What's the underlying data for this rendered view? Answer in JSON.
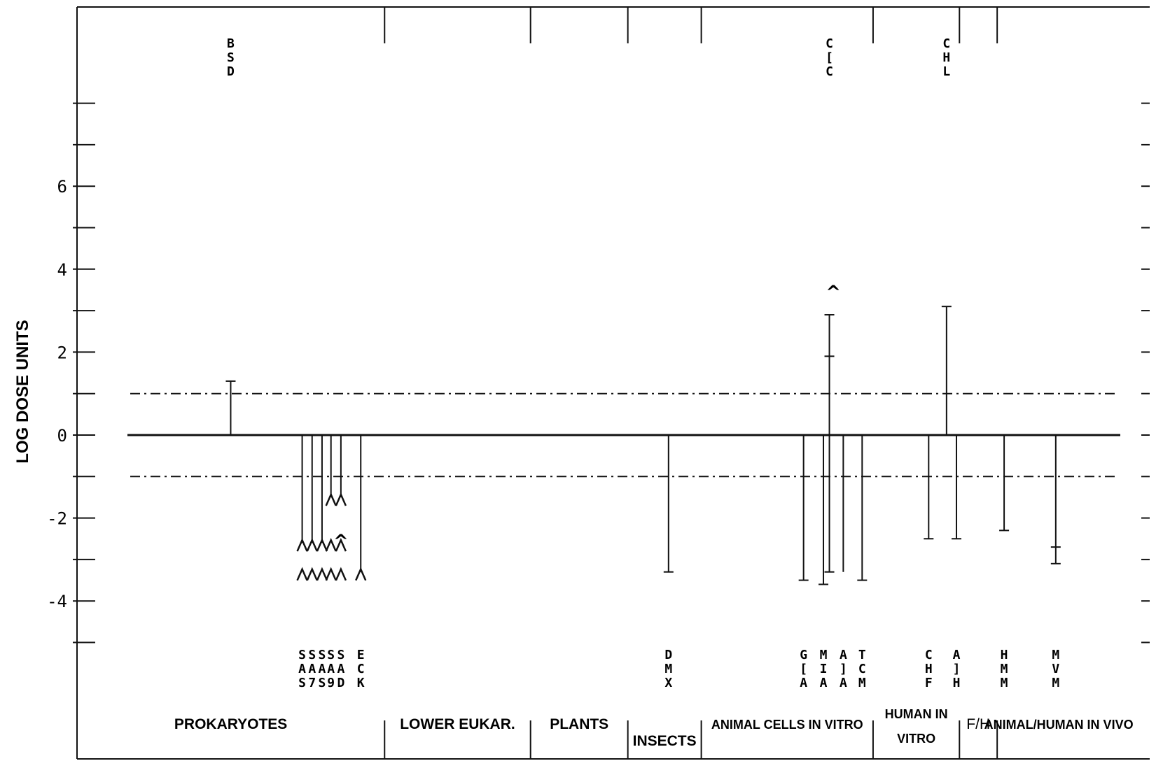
{
  "chart_data": {
    "type": "other",
    "ylabel": "LOG DOSE UNITS",
    "y_tick_labels": [
      "6",
      "4",
      "2",
      "0",
      "-2",
      "-4"
    ],
    "y_tick_values": [
      6,
      4,
      2,
      0,
      -2,
      -4
    ],
    "ylim": [
      -5.1,
      9.5
    ],
    "reference_lines": [
      1,
      -1
    ],
    "categories": [
      {
        "label": "PROKARYOTES",
        "xa": 0,
        "xb": 0.259
      },
      {
        "label": "LOWER EUKAR.",
        "xa": 0.259,
        "xb": 0.406
      },
      {
        "label": "PLANTS",
        "xa": 0.406,
        "xb": 0.504
      },
      {
        "label": "INSECTS",
        "xa": 0.504,
        "xb": 0.578
      },
      {
        "label": "ANIMAL CELLS IN VITRO",
        "xa": 0.578,
        "xb": 0.751
      },
      {
        "label": "HUMAN IN VITRO",
        "xa": 0.751,
        "xb": 0.838
      },
      {
        "label": "F/H",
        "xa": 0.838,
        "xb": 0.876
      },
      {
        "label": "ANIMAL/HUMAN IN VIVO",
        "xa": 0.876,
        "xb": 1
      }
    ],
    "top_codes": [
      {
        "code": "BSD",
        "x": 0.104
      },
      {
        "code": "C[C",
        "x": 0.707
      },
      {
        "code": "CHL",
        "x": 0.825
      }
    ],
    "bottom_codes": [
      {
        "code": "SAS",
        "x": 0.176
      },
      {
        "code": "SA7",
        "x": 0.186
      },
      {
        "code": "SAS",
        "x": 0.196
      },
      {
        "code": "SA9",
        "x": 0.205
      },
      {
        "code": "SAD",
        "x": 0.215
      },
      {
        "code": "ECK",
        "x": 0.235
      },
      {
        "code": "DMX",
        "x": 0.545
      },
      {
        "code": "G[A",
        "x": 0.681
      },
      {
        "code": "MIA",
        "x": 0.701
      },
      {
        "code": "A]A",
        "x": 0.721
      },
      {
        "code": "TCM",
        "x": 0.74
      },
      {
        "code": "CHF",
        "x": 0.807
      },
      {
        "code": "A]H",
        "x": 0.835
      },
      {
        "code": "HMM",
        "x": 0.883
      },
      {
        "code": "MVM",
        "x": 0.935
      }
    ],
    "bars": [
      {
        "x": 0.104,
        "from": 0,
        "to": 1.3,
        "cap": true
      },
      {
        "x": 0.176,
        "from": 0,
        "to": -2.6,
        "arrow": "up"
      },
      {
        "x": 0.186,
        "from": 0,
        "to": -2.6,
        "arrow": "up"
      },
      {
        "x": 0.196,
        "from": 0,
        "to": -2.6,
        "arrow": "up"
      },
      {
        "x": 0.205,
        "from": 0,
        "to": -1.5,
        "arrow": "up"
      },
      {
        "x": 0.215,
        "from": 0,
        "to": -1.5,
        "arrow": "up"
      },
      {
        "x": 0.235,
        "from": 0,
        "to": -3.3,
        "arrow": "up"
      },
      {
        "x": 0.545,
        "from": 0,
        "to": -3.3,
        "cap": true
      },
      {
        "x": 0.681,
        "from": 0,
        "to": -3.5,
        "cap": true
      },
      {
        "x": 0.701,
        "from": 0,
        "to": -3.6,
        "cap": true
      },
      {
        "x": 0.707,
        "from": 2.9,
        "to": -3.3,
        "cap": true,
        "tick": 1.9
      },
      {
        "x": 0.721,
        "from": 0,
        "to": -3.3,
        "arrow": "up"
      },
      {
        "x": 0.74,
        "from": 0,
        "to": -3.5,
        "cap": true
      },
      {
        "x": 0.807,
        "from": 0,
        "to": -2.5,
        "cap": true
      },
      {
        "x": 0.825,
        "from": 3.1,
        "to": 0,
        "cap": true
      },
      {
        "x": 0.835,
        "from": 0,
        "to": -2.5,
        "cap": true
      },
      {
        "x": 0.883,
        "from": 0,
        "to": -2.3,
        "cap": true
      },
      {
        "x": 0.935,
        "from": 0,
        "to": -3.1,
        "cap": true,
        "tick": -2.7
      }
    ],
    "carets": [
      {
        "x": 0.711,
        "y": 3.6
      },
      {
        "x": 0.215,
        "y": -2.4
      }
    ],
    "arrow_rows": [
      {
        "y": -3.3,
        "xs": [
          0.176,
          0.186,
          0.196,
          0.205,
          0.215,
          0.235
        ]
      },
      {
        "y": -2.6,
        "xs": [
          0.176,
          0.186,
          0.196,
          0.205,
          0.215
        ]
      },
      {
        "y": -1.5,
        "xs": [
          0.205,
          0.215
        ]
      }
    ]
  }
}
